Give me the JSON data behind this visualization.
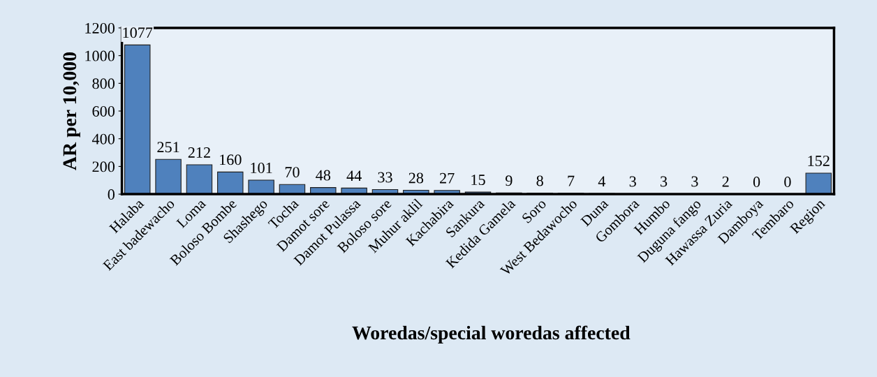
{
  "chart_data": {
    "type": "bar",
    "xlabel": "Woredas/special woredas affected",
    "ylabel": "AR per 10,000",
    "categories": [
      "Halaba",
      "East badewacho",
      "Loma",
      "Boloso Bombe",
      "Shashego",
      "Tocha",
      "Damot sore",
      "Damot Pulassa",
      "Boloso sore",
      "Muhur aklil",
      "Kachabira",
      "Sankura",
      "Kedida Gamela",
      "Soro",
      "West Bedawocho",
      "Duna",
      "Gombora",
      "Humbo",
      "Duguna fango",
      "Hawassa Zuria",
      "Damboya",
      "Tembaro",
      "Region"
    ],
    "values": [
      1077,
      251,
      212,
      160,
      101,
      70,
      48,
      44,
      33,
      28,
      27,
      15,
      9,
      8,
      7,
      4,
      3,
      3,
      3,
      2,
      0,
      0,
      152
    ],
    "color": "#4f81bd",
    "ylim": [
      0,
      1200
    ],
    "yticks": [
      0,
      200,
      400,
      600,
      800,
      1000,
      1200
    ],
    "grid": false,
    "legend": false,
    "data_labels": true
  }
}
